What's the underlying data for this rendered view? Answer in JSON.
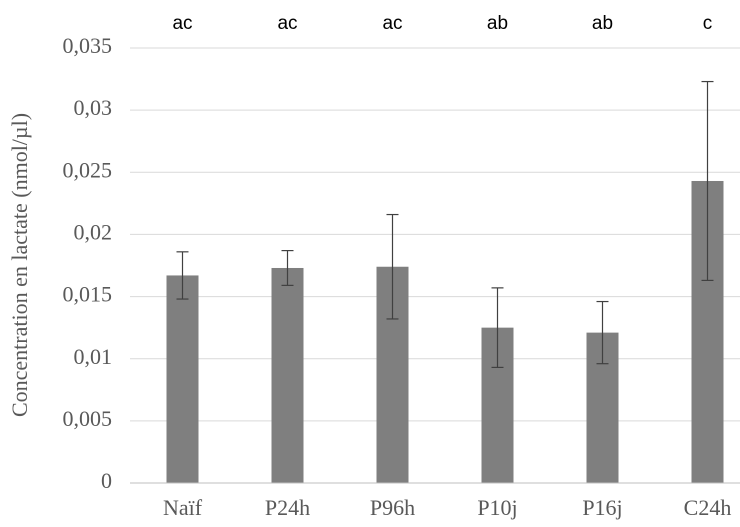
{
  "chart_data": {
    "type": "bar",
    "y_label": "Concentration en lactate (nmol/µl)",
    "categories": [
      "Naïf",
      "P24h",
      "P96h",
      "P10j",
      "P16j",
      "C24h"
    ],
    "values": [
      0.0167,
      0.0173,
      0.0174,
      0.0125,
      0.0121,
      0.0243
    ],
    "errors": [
      0.0019,
      0.0014,
      0.0042,
      0.0032,
      0.0025,
      0.008
    ],
    "annotations": [
      "ac",
      "ac",
      "ac",
      "ab",
      "ab",
      "c"
    ],
    "color": "#7f7f7f",
    "ylim": [
      0,
      0.035
    ],
    "yticks": [
      0,
      {
        "value": 0.005,
        "label": "0,005"
      },
      {
        "value": 0.01,
        "label": "0,01"
      },
      {
        "value": 0.015,
        "label": "0,015"
      },
      {
        "value": 0.02,
        "label": "0,02"
      },
      {
        "value": 0.025,
        "label": "0,025"
      },
      {
        "value": 0.03,
        "label": "0,03"
      },
      {
        "value": 0.035,
        "label": "0,035"
      }
    ],
    "grid": true
  }
}
